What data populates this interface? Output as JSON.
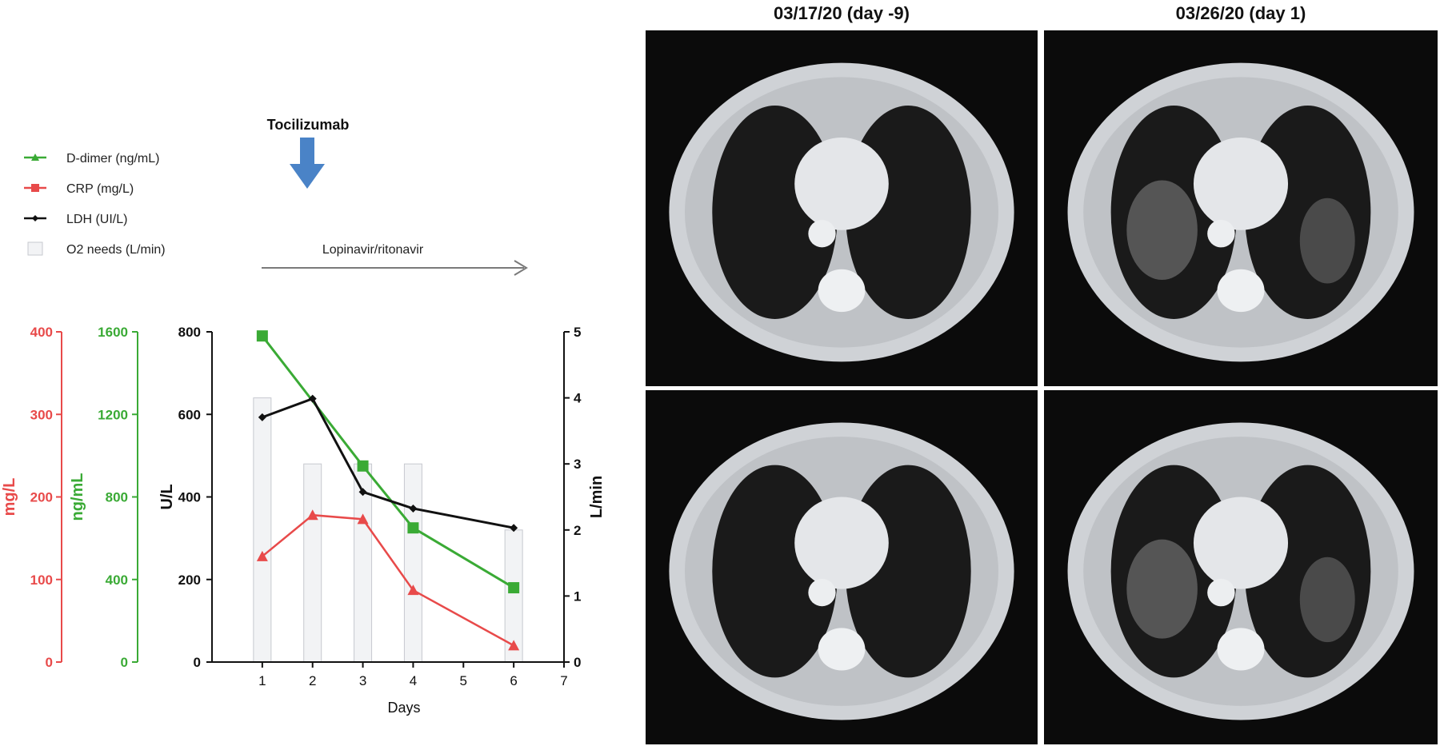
{
  "chart_data": {
    "type": "line",
    "x": [
      1,
      2,
      3,
      4,
      6
    ],
    "xlabel": "Days",
    "xlim": [
      0,
      7
    ],
    "xticks": [
      1,
      2,
      3,
      4,
      5,
      6,
      7
    ],
    "series": [
      {
        "name": "D-dimer (ng/mL)",
        "axis": "ng/mL",
        "marker": "triangle",
        "color": "#3aaa35",
        "values": [
          1580,
          null,
          950,
          650,
          360
        ]
      },
      {
        "name": "CRP (mg/L)",
        "axis": "mg/L",
        "marker": "square",
        "color": "#e84a4a",
        "values": [
          128,
          178,
          173,
          87,
          20
        ]
      },
      {
        "name": "LDH (UI/L)",
        "axis": "U/L",
        "marker": "diamond",
        "color": "#111111",
        "values": [
          593,
          638,
          412,
          372,
          325
        ]
      },
      {
        "name": "O2 needs (L/min)",
        "axis": "L/min",
        "type": "bar",
        "color": "#f2f3f5",
        "values": [
          4,
          3,
          3,
          3,
          2
        ]
      }
    ],
    "axes": {
      "mg_L": {
        "label": "mg/L",
        "ylim": [
          0,
          400
        ],
        "ticks": [
          0,
          100,
          200,
          300,
          400
        ],
        "color": "#e84a4a"
      },
      "ng_mL": {
        "label": "ng/mL",
        "ylim": [
          0,
          1600
        ],
        "ticks": [
          0,
          400,
          800,
          1200,
          1600
        ],
        "color": "#3aaa35"
      },
      "U_L": {
        "label": "U/L",
        "ylim": [
          0,
          800
        ],
        "ticks": [
          0,
          200,
          400,
          600,
          800
        ],
        "color": "#111111"
      },
      "L_min": {
        "label": "L/min",
        "ylim": [
          0,
          5
        ],
        "ticks": [
          0,
          1,
          2,
          3,
          4,
          5
        ],
        "color": "#111111"
      }
    },
    "annotations": {
      "tocilizumab": "Tocilizumab",
      "lopinavir": "Lopinavir/ritonavir"
    },
    "legend_position": "top-left"
  },
  "ct_panels": {
    "titles": [
      "03/17/20 (day -9)",
      "03/26/20 (day 1)"
    ]
  }
}
